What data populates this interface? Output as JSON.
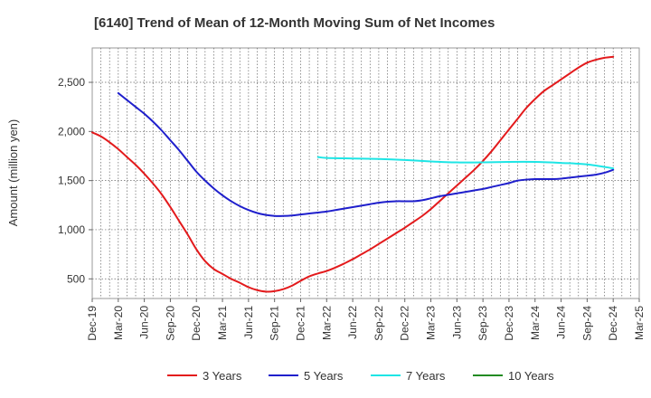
{
  "chart_data": {
    "type": "line",
    "title": "[6140]  Trend of Mean of 12-Month Moving Sum of Net Incomes",
    "ylabel": "Amount (million yen)",
    "xlabel": "",
    "ylim": [
      300,
      2850
    ],
    "yticks": [
      500,
      1000,
      1500,
      2000,
      2500
    ],
    "ytick_labels": [
      "500",
      "1,000",
      "1,500",
      "2,000",
      "2,500"
    ],
    "x_range_months": [
      "Dec-19",
      "Mar-25"
    ],
    "xtick_labels": [
      "Dec-19",
      "Mar-20",
      "Jun-20",
      "Sep-20",
      "Dec-20",
      "Mar-21",
      "Jun-21",
      "Sep-21",
      "Dec-21",
      "Mar-22",
      "Jun-22",
      "Sep-22",
      "Dec-22",
      "Mar-23",
      "Jun-23",
      "Sep-23",
      "Dec-23",
      "Mar-24",
      "Jun-24",
      "Sep-24",
      "Dec-24",
      "Mar-25"
    ],
    "grid": true,
    "legend_position": "bottom",
    "series": [
      {
        "name": "3 Years",
        "color": "#e31a1c",
        "x": [
          "Dec-19",
          "Jan-20",
          "Feb-20",
          "Mar-20",
          "Apr-20",
          "May-20",
          "Jun-20",
          "Jul-20",
          "Aug-20",
          "Sep-20",
          "Oct-20",
          "Nov-20",
          "Dec-20",
          "Jan-21",
          "Feb-21",
          "Mar-21",
          "Apr-21",
          "May-21",
          "Jun-21",
          "Jul-21",
          "Aug-21",
          "Sep-21",
          "Oct-21",
          "Nov-21",
          "Dec-21",
          "Jan-22",
          "Feb-22",
          "Mar-22",
          "Apr-22",
          "May-22",
          "Jun-22",
          "Jul-22",
          "Aug-22",
          "Sep-22",
          "Oct-22",
          "Nov-22",
          "Dec-22",
          "Jan-23",
          "Feb-23",
          "Mar-23",
          "Apr-23",
          "May-23",
          "Jun-23",
          "Jul-23",
          "Aug-23",
          "Sep-23",
          "Oct-23",
          "Nov-23",
          "Dec-23",
          "Jan-24",
          "Feb-24",
          "Mar-24",
          "Apr-24",
          "May-24",
          "Jun-24",
          "Jul-24",
          "Aug-24",
          "Sep-24",
          "Oct-24",
          "Nov-24",
          "Dec-24"
        ],
        "y": [
          1990,
          1950,
          1890,
          1820,
          1740,
          1660,
          1570,
          1470,
          1360,
          1230,
          1090,
          950,
          800,
          680,
          600,
          550,
          500,
          460,
          415,
          385,
          370,
          375,
          395,
          430,
          480,
          525,
          555,
          580,
          615,
          655,
          700,
          750,
          800,
          855,
          910,
          965,
          1020,
          1080,
          1140,
          1210,
          1290,
          1370,
          1450,
          1530,
          1610,
          1700,
          1800,
          1910,
          2020,
          2130,
          2240,
          2330,
          2410,
          2470,
          2530,
          2590,
          2650,
          2700,
          2730,
          2750,
          2760
        ]
      },
      {
        "name": "5 Years",
        "color": "#1f1fcc",
        "x": [
          "Mar-20",
          "Apr-20",
          "May-20",
          "Jun-20",
          "Jul-20",
          "Aug-20",
          "Sep-20",
          "Oct-20",
          "Nov-20",
          "Dec-20",
          "Jan-21",
          "Feb-21",
          "Mar-21",
          "Apr-21",
          "May-21",
          "Jun-21",
          "Jul-21",
          "Aug-21",
          "Sep-21",
          "Oct-21",
          "Nov-21",
          "Dec-21",
          "Jan-22",
          "Feb-22",
          "Mar-22",
          "Apr-22",
          "May-22",
          "Jun-22",
          "Jul-22",
          "Aug-22",
          "Sep-22",
          "Oct-22",
          "Nov-22",
          "Dec-22",
          "Jan-23",
          "Feb-23",
          "Mar-23",
          "Apr-23",
          "May-23",
          "Jun-23",
          "Jul-23",
          "Aug-23",
          "Sep-23",
          "Oct-23",
          "Nov-23",
          "Dec-23",
          "Jan-24",
          "Feb-24",
          "Mar-24",
          "Apr-24",
          "May-24",
          "Jun-24",
          "Jul-24",
          "Aug-24",
          "Sep-24",
          "Oct-24",
          "Nov-24",
          "Dec-24"
        ],
        "y": [
          2390,
          2320,
          2250,
          2180,
          2100,
          2010,
          1910,
          1810,
          1700,
          1590,
          1500,
          1420,
          1350,
          1290,
          1240,
          1200,
          1170,
          1150,
          1140,
          1140,
          1145,
          1155,
          1165,
          1175,
          1185,
          1200,
          1215,
          1230,
          1245,
          1260,
          1275,
          1285,
          1290,
          1290,
          1290,
          1300,
          1320,
          1340,
          1355,
          1370,
          1385,
          1400,
          1415,
          1435,
          1455,
          1475,
          1500,
          1510,
          1515,
          1515,
          1515,
          1520,
          1530,
          1540,
          1550,
          1560,
          1580,
          1610
        ]
      },
      {
        "name": "7 Years",
        "color": "#1ee5e5",
        "x": [
          "Feb-22",
          "Mar-22",
          "Jun-22",
          "Sep-22",
          "Dec-22",
          "Mar-23",
          "Jun-23",
          "Sep-23",
          "Dec-23",
          "Mar-24",
          "Jun-24",
          "Sep-24",
          "Dec-24"
        ],
        "y": [
          1740,
          1730,
          1725,
          1720,
          1710,
          1695,
          1685,
          1685,
          1690,
          1690,
          1680,
          1665,
          1625
        ]
      },
      {
        "name": "10 Years",
        "color": "#228b22",
        "x": [],
        "y": []
      }
    ]
  }
}
